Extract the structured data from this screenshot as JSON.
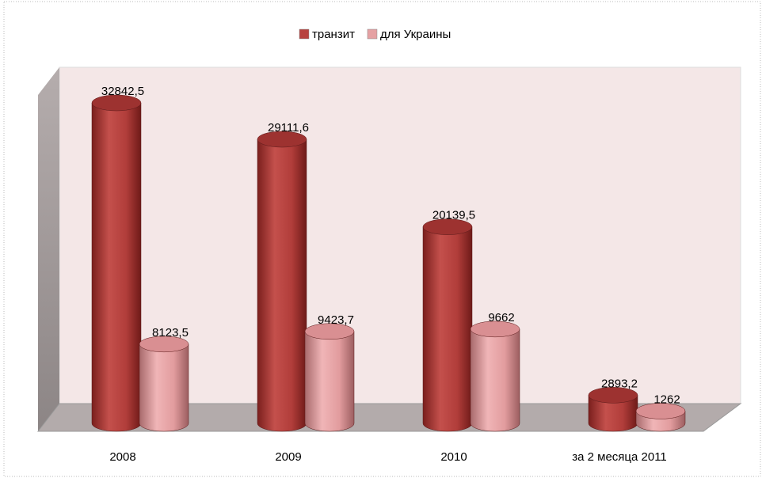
{
  "chart_data": {
    "type": "bar3d",
    "categories": [
      "2008",
      "2009",
      "2010",
      "за 2 месяца 2011"
    ],
    "series": [
      {
        "name": "транзит",
        "color": "#b7413e",
        "values": [
          32842.5,
          29111.6,
          20139.5,
          2893.2
        ],
        "value_labels": [
          "32842,5",
          "29111,6",
          "20139,5",
          "2893,2"
        ]
      },
      {
        "name": "для Украины",
        "color": "#e5a1a3",
        "values": [
          8123.5,
          9423.7,
          9662,
          1262
        ],
        "value_labels": [
          "8123,5",
          "9423,7",
          "9662",
          "1262"
        ]
      }
    ],
    "legend": "top"
  }
}
